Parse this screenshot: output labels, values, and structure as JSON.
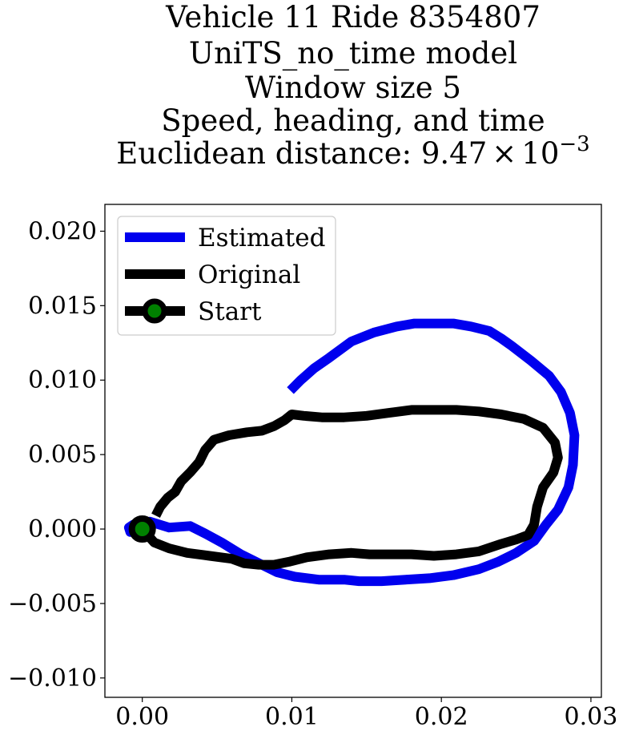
{
  "chart_data": {
    "type": "line",
    "title_lines": [
      "Vehicle 11 Ride 8354807",
      "UniTS_no_time model",
      "Window size 5",
      "Speed, heading, and time"
    ],
    "title_distance_prefix": "Euclidean distance: ",
    "title_distance_mantissa": "9.47",
    "title_distance_times": "×",
    "title_distance_base": "10",
    "title_distance_exponent": "−3",
    "xlim": [
      -0.0025,
      0.0307
    ],
    "ylim": [
      -0.0113,
      0.0218
    ],
    "xticks": [
      {
        "value": 0.0,
        "label": "0.00"
      },
      {
        "value": 0.01,
        "label": "0.01"
      },
      {
        "value": 0.02,
        "label": "0.02"
      },
      {
        "value": 0.03,
        "label": "0.03"
      }
    ],
    "yticks": [
      {
        "value": -0.01,
        "label": "−0.010"
      },
      {
        "value": -0.005,
        "label": "−0.005"
      },
      {
        "value": 0.0,
        "label": "0.000"
      },
      {
        "value": 0.005,
        "label": "0.005"
      },
      {
        "value": 0.01,
        "label": "0.010"
      },
      {
        "value": 0.015,
        "label": "0.015"
      },
      {
        "value": 0.02,
        "label": "0.020"
      }
    ],
    "grid": false,
    "legend_position": "upper left",
    "series": [
      {
        "name": "Estimated",
        "color": "#0000ee",
        "points": [
          [
            0.0,
            0.0
          ],
          [
            -0.0008,
            -0.0002
          ],
          [
            -0.0009,
            0.0001
          ],
          [
            -0.0006,
            0.0003
          ],
          [
            0.0005,
            0.0005
          ],
          [
            0.0018,
            0.0001
          ],
          [
            0.0032,
            0.0002
          ],
          [
            0.0042,
            -0.0003
          ],
          [
            0.0053,
            -0.0009
          ],
          [
            0.0066,
            -0.0017
          ],
          [
            0.0078,
            -0.0023
          ],
          [
            0.009,
            -0.0029
          ],
          [
            0.0102,
            -0.0032
          ],
          [
            0.0118,
            -0.0034
          ],
          [
            0.0135,
            -0.0034
          ],
          [
            0.0145,
            -0.0035
          ],
          [
            0.016,
            -0.0035
          ],
          [
            0.0176,
            -0.0034
          ],
          [
            0.0192,
            -0.0033
          ],
          [
            0.0208,
            -0.0031
          ],
          [
            0.0225,
            -0.0027
          ],
          [
            0.0238,
            -0.0022
          ],
          [
            0.025,
            -0.0016
          ],
          [
            0.0262,
            -0.0008
          ],
          [
            0.027,
            0.0003
          ],
          [
            0.0278,
            0.0013
          ],
          [
            0.0285,
            0.0028
          ],
          [
            0.0288,
            0.0043
          ],
          [
            0.0289,
            0.0063
          ],
          [
            0.0286,
            0.0078
          ],
          [
            0.028,
            0.0092
          ],
          [
            0.0272,
            0.0103
          ],
          [
            0.026,
            0.0113
          ],
          [
            0.0247,
            0.0123
          ],
          [
            0.024,
            0.0128
          ],
          [
            0.0232,
            0.0133
          ],
          [
            0.022,
            0.0136
          ],
          [
            0.0208,
            0.0138
          ],
          [
            0.0195,
            0.0138
          ],
          [
            0.0182,
            0.0138
          ],
          [
            0.017,
            0.0136
          ],
          [
            0.0155,
            0.0132
          ],
          [
            0.014,
            0.0126
          ],
          [
            0.0125,
            0.0115
          ],
          [
            0.0115,
            0.0108
          ],
          [
            0.0106,
            0.01
          ],
          [
            0.0099,
            0.0093
          ]
        ]
      },
      {
        "name": "Original",
        "color": "#000000",
        "points": [
          [
            0.0,
            0.0
          ],
          [
            0.0008,
            -0.0009
          ],
          [
            0.0018,
            -0.0013
          ],
          [
            0.003,
            -0.0016
          ],
          [
            0.0045,
            -0.0018
          ],
          [
            0.006,
            -0.002
          ],
          [
            0.0068,
            -0.0023
          ],
          [
            0.0078,
            -0.0024
          ],
          [
            0.0088,
            -0.0024
          ],
          [
            0.0098,
            -0.0022
          ],
          [
            0.011,
            -0.0019
          ],
          [
            0.0125,
            -0.0017
          ],
          [
            0.014,
            -0.0016
          ],
          [
            0.0152,
            -0.0017
          ],
          [
            0.0165,
            -0.0017
          ],
          [
            0.018,
            -0.0017
          ],
          [
            0.0195,
            -0.0018
          ],
          [
            0.021,
            -0.0017
          ],
          [
            0.0225,
            -0.0015
          ],
          [
            0.024,
            -0.001
          ],
          [
            0.025,
            -0.0007
          ],
          [
            0.0258,
            -0.0004
          ],
          [
            0.0262,
            0.0003
          ],
          [
            0.0264,
            0.0015
          ],
          [
            0.0268,
            0.0028
          ],
          [
            0.0275,
            0.0038
          ],
          [
            0.0278,
            0.0048
          ],
          [
            0.0276,
            0.0058
          ],
          [
            0.0268,
            0.0068
          ],
          [
            0.0255,
            0.0074
          ],
          [
            0.024,
            0.0077
          ],
          [
            0.0225,
            0.0079
          ],
          [
            0.021,
            0.008
          ],
          [
            0.0195,
            0.008
          ],
          [
            0.018,
            0.008
          ],
          [
            0.0165,
            0.0078
          ],
          [
            0.015,
            0.0076
          ],
          [
            0.0135,
            0.0075
          ],
          [
            0.012,
            0.0075
          ],
          [
            0.0108,
            0.0076
          ],
          [
            0.01,
            0.0077
          ],
          [
            0.0095,
            0.0073
          ],
          [
            0.0088,
            0.0069
          ],
          [
            0.008,
            0.0066
          ],
          [
            0.007,
            0.0065
          ],
          [
            0.0058,
            0.0063
          ],
          [
            0.0048,
            0.006
          ],
          [
            0.0042,
            0.0053
          ],
          [
            0.0038,
            0.0045
          ],
          [
            0.0032,
            0.0038
          ],
          [
            0.0026,
            0.0032
          ],
          [
            0.0022,
            0.0025
          ],
          [
            0.0017,
            0.0021
          ],
          [
            0.0012,
            0.0015
          ],
          [
            0.0009,
            0.0009
          ]
        ]
      }
    ],
    "start_marker": {
      "name": "Start",
      "x": 0.0,
      "y": 0.0,
      "edge_color": "#000000",
      "face_color": "#008000"
    }
  }
}
